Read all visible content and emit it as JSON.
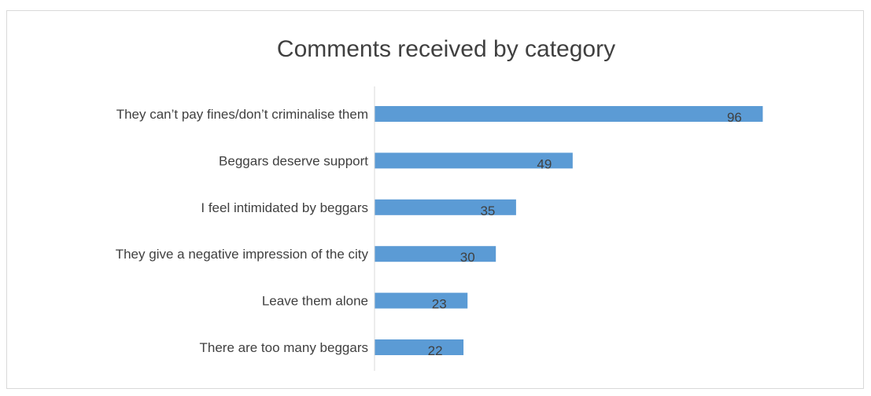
{
  "chart_data": {
    "type": "bar",
    "orientation": "horizontal",
    "title": "Comments received by category",
    "xlabel": "",
    "ylabel": "",
    "categories": [
      "They can’t pay fines/don’t criminalise them",
      "Beggars deserve support",
      "I feel intimidated by beggars",
      "They give a negative impression of the city",
      "Leave them alone",
      "There are too many beggars"
    ],
    "values": [
      96,
      49,
      35,
      30,
      23,
      22
    ],
    "xlim": [
      0,
      100
    ],
    "grid": false,
    "legend": "none",
    "bar_color": "#5b9bd5",
    "axis_color": "#d9d9d9",
    "text_color": "#404040"
  }
}
